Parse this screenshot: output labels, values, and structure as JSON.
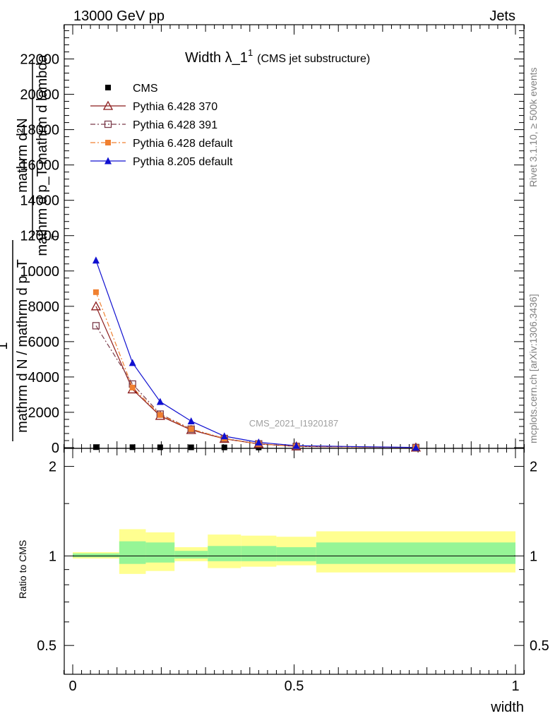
{
  "header": {
    "left": "13000 GeV pp",
    "right": "Jets"
  },
  "side": {
    "rivet": "Rivet 3.1.10, ≥ 500k events",
    "mcplots": "mcplots.cern.ch [arXiv:1306.3436]"
  },
  "chart_data": {
    "type": "line",
    "title": "Width λ_1",
    "title_sup": "1",
    "subtitle": "(CMS jet substructure)",
    "watermark": "CMS_2021_I1920187",
    "xlabel": "width",
    "ylabel_top": {
      "numer": "mathrm d²N",
      "denom": "mathrm d p_T mathrm d lambda",
      "sub": "T"
    },
    "ylabel_bottom": {
      "numer": "1",
      "denom": "mathrm d N / mathrm d p_T"
    },
    "ratio_ylabel": "Ratio to CMS",
    "xlim": [
      -0.02,
      1.02
    ],
    "ylim": [
      0,
      24000
    ],
    "ratio_ylim": [
      0.4,
      2.3
    ],
    "x_ticks": [
      0,
      0.5,
      1
    ],
    "x_tick_labels": [
      "0",
      "0.5",
      "1"
    ],
    "y_ticks": [
      0,
      2000,
      4000,
      6000,
      8000,
      10000,
      12000,
      14000,
      16000,
      18000,
      20000,
      22000
    ],
    "y_tick_labels": [
      "0",
      "2000",
      "4000",
      "6000",
      "8000",
      "10000",
      "12000",
      "14000",
      "16000",
      "18000",
      "20000",
      "22000"
    ],
    "ratio_ticks": [
      0.5,
      1,
      2
    ],
    "ratio_tick_labels": [
      "0.5",
      "1",
      "2"
    ],
    "legend_position": "top-left",
    "bins": [
      {
        "lo": 0.0,
        "hi": 0.105,
        "x": 0.0525
      },
      {
        "lo": 0.105,
        "hi": 0.165,
        "x": 0.135
      },
      {
        "lo": 0.165,
        "hi": 0.23,
        "x": 0.1975
      },
      {
        "lo": 0.23,
        "hi": 0.305,
        "x": 0.2675
      },
      {
        "lo": 0.305,
        "hi": 0.38,
        "x": 0.3425
      },
      {
        "lo": 0.38,
        "hi": 0.46,
        "x": 0.42
      },
      {
        "lo": 0.46,
        "hi": 0.55,
        "x": 0.505
      },
      {
        "lo": 0.55,
        "hi": 1.0,
        "x": 0.775
      }
    ],
    "ratio_bands": {
      "yellow": [
        [
          0.98,
          1.03
        ],
        [
          0.87,
          1.23
        ],
        [
          0.89,
          1.2
        ],
        [
          0.96,
          1.07
        ],
        [
          0.91,
          1.18
        ],
        [
          0.92,
          1.17
        ],
        [
          0.93,
          1.16
        ],
        [
          0.88,
          1.21
        ]
      ],
      "green": [
        [
          0.99,
          1.02
        ],
        [
          0.94,
          1.12
        ],
        [
          0.95,
          1.11
        ],
        [
          0.98,
          1.04
        ],
        [
          0.96,
          1.08
        ],
        [
          0.96,
          1.08
        ],
        [
          0.96,
          1.07
        ],
        [
          0.94,
          1.11
        ]
      ]
    },
    "series": [
      {
        "name": "CMS",
        "color": "#000000",
        "marker": "square-filled",
        "line": "none",
        "values": [
          30,
          25,
          20,
          18,
          15,
          12,
          8,
          3
        ]
      },
      {
        "name": "Pythia 6.428 370",
        "color": "#8b1a1a",
        "marker": "triangle-open",
        "line": "solid",
        "values": [
          8000,
          3300,
          1800,
          1000,
          500,
          210,
          70,
          8
        ]
      },
      {
        "name": "Pythia 6.428 391",
        "color": "#7a3b4a",
        "marker": "square-open",
        "line": "dashdot",
        "values": [
          6900,
          3600,
          1900,
          1050,
          520,
          215,
          72,
          8
        ]
      },
      {
        "name": "Pythia 6.428 default",
        "color": "#f08030",
        "marker": "square-filled",
        "line": "dashdot",
        "values": [
          8800,
          3400,
          1850,
          1050,
          510,
          210,
          70,
          8
        ]
      },
      {
        "name": "Pythia 8.205 default",
        "color": "#1010d0",
        "marker": "triangle-filled",
        "line": "solid",
        "values": [
          10600,
          4800,
          2600,
          1500,
          650,
          300,
          110,
          10
        ]
      }
    ]
  }
}
